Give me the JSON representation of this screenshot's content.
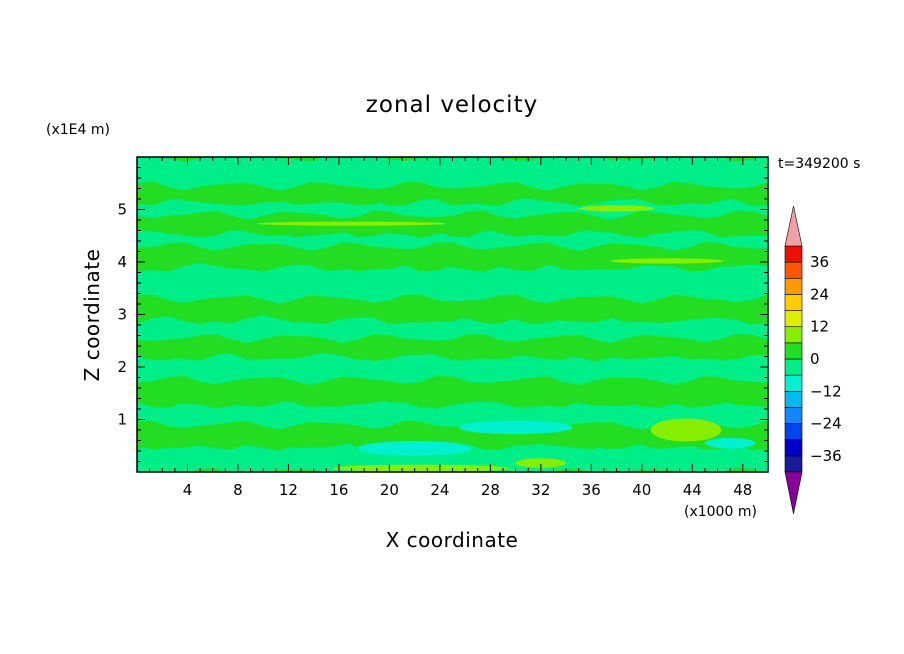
{
  "chart_data": {
    "type": "heatmap",
    "title": "zonal velocity",
    "xlabel": "X coordinate",
    "ylabel": "Z coordinate",
    "x_unit_label": "(x1000 m)",
    "y_unit_label": "(x1E4 m)",
    "time_label": "t=349200 s",
    "xlim": [
      0,
      50
    ],
    "ylim": [
      0,
      6
    ],
    "x_ticks": [
      4,
      8,
      12,
      16,
      20,
      24,
      28,
      32,
      36,
      40,
      44,
      48
    ],
    "x_tick_labels": [
      "4",
      "8",
      "12",
      "16",
      "20",
      "24",
      "28",
      "32",
      "36",
      "40",
      "44",
      "48"
    ],
    "y_ticks": [
      1,
      2,
      3,
      4,
      5
    ],
    "y_tick_labels": [
      "1",
      "2",
      "3",
      "4",
      "5"
    ],
    "colorbar": {
      "levels": [
        -42,
        -36,
        -30,
        -24,
        -18,
        -12,
        -6,
        0,
        6,
        12,
        18,
        24,
        30,
        36,
        42
      ],
      "colors": [
        "#5a0a8a",
        "#1a1a9a",
        "#0000cc",
        "#0044ee",
        "#1188ff",
        "#00bbee",
        "#00f0d0",
        "#00ee88",
        "#22dd22",
        "#88ee00",
        "#ddee00",
        "#ffcc00",
        "#ff9900",
        "#ff5500",
        "#ee1100",
        "#dd0000"
      ],
      "extend_min_color": "#880099",
      "extend_max_color": "#f0a0a0",
      "tick_values": [
        36,
        24,
        12,
        0,
        -12,
        -24,
        -36
      ],
      "tick_labels": [
        "36",
        "24",
        "12",
        "0",
        "−12",
        "−24",
        "−36"
      ]
    },
    "background_value": 2,
    "bands": [
      {
        "y0": 0.0,
        "y1": 0.5,
        "value": -3
      },
      {
        "y0": 0.5,
        "y1": 0.9,
        "value": 2
      },
      {
        "y0": 0.9,
        "y1": 1.3,
        "value": -3
      },
      {
        "y0": 1.3,
        "y1": 1.75,
        "value": 2
      },
      {
        "y0": 1.75,
        "y1": 2.2,
        "value": -3
      },
      {
        "y0": 2.2,
        "y1": 2.55,
        "value": 2
      },
      {
        "y0": 2.55,
        "y1": 2.9,
        "value": -3
      },
      {
        "y0": 2.9,
        "y1": 3.3,
        "value": 2
      },
      {
        "y0": 3.3,
        "y1": 3.9,
        "value": -3
      },
      {
        "y0": 3.9,
        "y1": 4.3,
        "value": 2
      },
      {
        "y0": 4.3,
        "y1": 4.55,
        "value": -3
      },
      {
        "y0": 4.55,
        "y1": 4.9,
        "value": 2
      },
      {
        "y0": 4.9,
        "y1": 5.15,
        "value": -3
      },
      {
        "y0": 5.15,
        "y1": 5.45,
        "value": 2
      },
      {
        "y0": 5.45,
        "y1": 6.0,
        "value": -3
      }
    ],
    "patches": [
      {
        "cx": 43.5,
        "cy": 0.8,
        "rx": 2.8,
        "ry": 0.22,
        "value": 8
      },
      {
        "cx": 17.0,
        "cy": 4.73,
        "rx": 7.5,
        "ry": 0.04,
        "value": 8
      },
      {
        "cx": 42.0,
        "cy": 4.02,
        "rx": 4.5,
        "ry": 0.05,
        "value": 8
      },
      {
        "cx": 38.0,
        "cy": 5.02,
        "rx": 3.0,
        "ry": 0.06,
        "value": 8
      },
      {
        "cx": 22.5,
        "cy": 0.07,
        "rx": 7.0,
        "ry": 0.07,
        "value": 8
      },
      {
        "cx": 32.0,
        "cy": 0.17,
        "rx": 2.0,
        "ry": 0.09,
        "value": 8
      },
      {
        "cx": 22.0,
        "cy": 0.45,
        "rx": 4.5,
        "ry": 0.14,
        "value": -8
      },
      {
        "cx": 30.0,
        "cy": 0.85,
        "rx": 4.5,
        "ry": 0.13,
        "value": -8
      },
      {
        "cx": 47.0,
        "cy": 0.55,
        "rx": 2.0,
        "ry": 0.1,
        "value": -8
      }
    ]
  }
}
